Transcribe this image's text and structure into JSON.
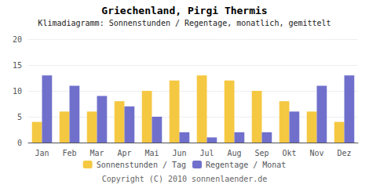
{
  "chart_data": {
    "type": "bar",
    "title": "Griechenland, Pirgi Thermis",
    "subtitle": "Klimadiagramm: Sonnenstunden / Regentage, monatlich, gemittelt",
    "annotations": [
      "Copyright (C) 2010 sonnenlaender.de"
    ],
    "categories": [
      "Jan",
      "Feb",
      "Mar",
      "Apr",
      "Mai",
      "Jun",
      "Jul",
      "Aug",
      "Sep",
      "Okt",
      "Nov",
      "Dez"
    ],
    "series": [
      {
        "name": "Sonnenstunden / Tag",
        "color": "#F5C842",
        "values": [
          4,
          6,
          6,
          8,
          10,
          12,
          13,
          12,
          10,
          8,
          6,
          4
        ]
      },
      {
        "name": "Regentage / Monat",
        "color": "#7070CC",
        "values": [
          13,
          11,
          9,
          7,
          5,
          2,
          1,
          2,
          2,
          6,
          11,
          13
        ]
      }
    ],
    "ylim": [
      0,
      20
    ],
    "yticks": [
      0,
      5,
      10,
      15,
      20
    ],
    "grid": true,
    "legend": "bottom"
  }
}
